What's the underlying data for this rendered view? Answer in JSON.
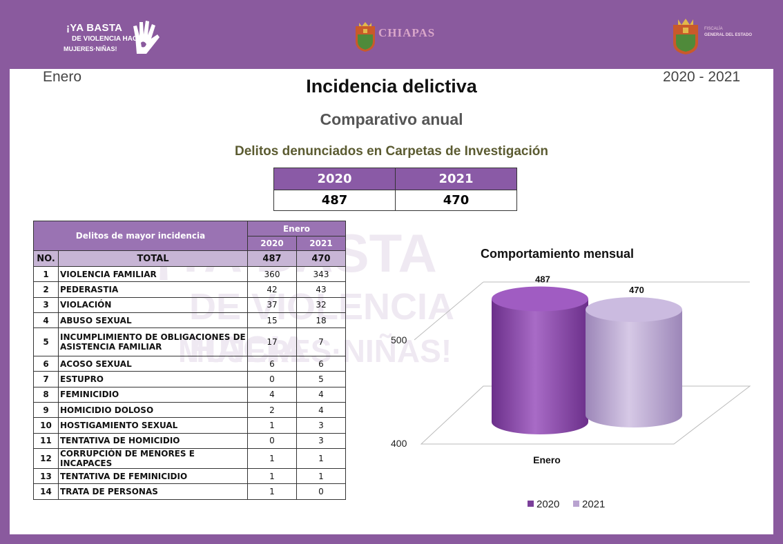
{
  "header": {
    "logo_left": {
      "line1": "¡YA BASTA",
      "line2": "DE VIOLENCIA HACIA",
      "line3": "MUJERES·NIÑAS!"
    },
    "logo_center": {
      "text": "CHIAPAS"
    },
    "logo_right": {
      "line1": "FISCALÍA",
      "line2": "GENERAL DEL ESTADO",
      "line3": ""
    }
  },
  "page": {
    "month": "Enero",
    "year_range": "2020 - 2021",
    "title": "Incidencia delictiva",
    "subtitle": "Comparativo anual",
    "section_title": "Delitos denunciados en Carpetas de Investigación"
  },
  "summary": {
    "years": [
      "2020",
      "2021"
    ],
    "values": [
      "487",
      "470"
    ]
  },
  "watermark": {
    "line1": "¡YA BASTA",
    "line2": "DE VIOLENCIA HACIA",
    "line3": "MUJERES·NIÑAS!"
  },
  "table": {
    "header_label": "Delitos de mayor incidencia",
    "period": "Enero",
    "years": [
      "2020",
      "2021"
    ],
    "no_label": "NO.",
    "total_label": "TOTAL",
    "total_values": [
      "487",
      "470"
    ],
    "rows": [
      {
        "no": "1",
        "name": "VIOLENCIA FAMILIAR",
        "v2020": "360",
        "v2021": "343"
      },
      {
        "no": "2",
        "name": "PEDERASTIA",
        "v2020": "42",
        "v2021": "43"
      },
      {
        "no": "3",
        "name": "VIOLACIÓN",
        "v2020": "37",
        "v2021": "32"
      },
      {
        "no": "4",
        "name": "ABUSO SEXUAL",
        "v2020": "15",
        "v2021": "18"
      },
      {
        "no": "5",
        "name": "INCUMPLIMIENTO DE OBLIGACIONES DE ASISTENCIA FAMILIAR",
        "v2020": "17",
        "v2021": "7"
      },
      {
        "no": "6",
        "name": "ACOSO SEXUAL",
        "v2020": "6",
        "v2021": "6"
      },
      {
        "no": "7",
        "name": "ESTUPRO",
        "v2020": "0",
        "v2021": "5"
      },
      {
        "no": "8",
        "name": "FEMINICIDIO",
        "v2020": "4",
        "v2021": "4"
      },
      {
        "no": "9",
        "name": "HOMICIDIO DOLOSO",
        "v2020": "2",
        "v2021": "4"
      },
      {
        "no": "10",
        "name": "HOSTIGAMIENTO SEXUAL",
        "v2020": "1",
        "v2021": "3"
      },
      {
        "no": "11",
        "name": "TENTATIVA DE HOMICIDIO",
        "v2020": "0",
        "v2021": "3"
      },
      {
        "no": "12",
        "name": "CORRUPCIÓN DE MENORES E INCAPACES",
        "v2020": "1",
        "v2021": "1"
      },
      {
        "no": "13",
        "name": "TENTATIVA DE FEMINICIDIO",
        "v2020": "1",
        "v2021": "1"
      },
      {
        "no": "14",
        "name": "TRATA DE PERSONAS",
        "v2020": "1",
        "v2021": "0"
      }
    ]
  },
  "chart_data": {
    "type": "bar",
    "title": "Comportamiento mensual",
    "categories": [
      "Enero"
    ],
    "series": [
      {
        "name": "2020",
        "values": [
          487
        ],
        "color": "#8b4fa8"
      },
      {
        "name": "2021",
        "values": [
          470
        ],
        "color": "#b9a3d0"
      }
    ],
    "ylim": [
      400,
      500
    ],
    "yticks": [
      "400",
      "500"
    ],
    "data_labels": [
      "487",
      "470"
    ],
    "legend": "bottom",
    "style": "3d-cylinder"
  },
  "colors": {
    "frame": "#8a5a9e",
    "table_header": "#9a73b3",
    "table_total": "#c7b5d5",
    "summary_header": "#8a5aa6"
  }
}
